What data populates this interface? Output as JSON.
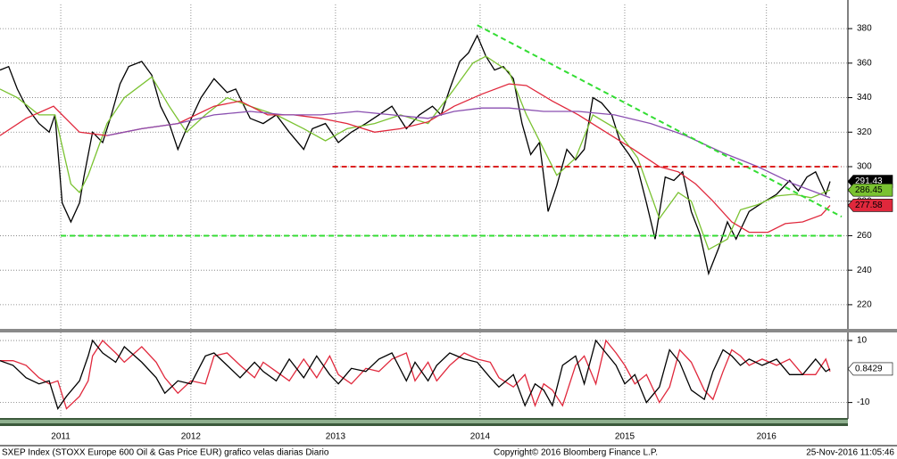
{
  "chart_data": [
    {
      "type": "line",
      "xlim": [
        2011.17,
        2016.99
      ],
      "ylim": [
        206,
        394
      ],
      "yticks": [
        220,
        240,
        260,
        280,
        300,
        320,
        340,
        360,
        380
      ],
      "grid": true,
      "series": [
        {
          "color": "#000000",
          "x": [
            2011.17,
            2011.23,
            2011.29,
            2011.35,
            2011.44,
            2011.51,
            2011.55,
            2011.6,
            2011.66,
            2011.72,
            2011.75,
            2011.81,
            2011.88,
            2011.94,
            2012.0,
            2012.06,
            2012.15,
            2012.22,
            2012.28,
            2012.34,
            2012.4,
            2012.46,
            2012.56,
            2012.65,
            2012.74,
            2012.8,
            2012.9,
            2012.99,
            2013.08,
            2013.17,
            2013.27,
            2013.33,
            2013.42,
            2013.51,
            2013.6,
            2013.7,
            2013.79,
            2013.88,
            2013.98,
            2014.07,
            2014.16,
            2014.22,
            2014.28,
            2014.35,
            2014.41,
            2014.47,
            2014.53,
            2014.59,
            2014.65,
            2014.72,
            2014.78,
            2014.84,
            2014.9,
            2014.96,
            2015.02,
            2015.09,
            2015.15,
            2015.21,
            2015.27,
            2015.33,
            2015.4,
            2015.46,
            2015.52,
            2015.58,
            2015.64,
            2015.7,
            2015.77,
            2015.83,
            2015.89,
            2015.95,
            2016.01,
            2016.07,
            2016.14,
            2016.2,
            2016.26,
            2016.35,
            2016.44,
            2016.54,
            2016.63,
            2016.69,
            2016.75,
            2016.81,
            2016.88,
            2016.91
          ],
          "values": [
            356,
            358,
            345,
            335,
            325,
            320,
            330,
            279,
            268,
            279,
            294,
            320,
            314,
            330,
            348,
            358,
            361,
            353,
            335,
            325,
            310,
            322,
            340,
            351,
            343,
            345,
            328,
            325,
            330,
            320,
            310,
            322,
            325,
            314,
            320,
            325,
            330,
            335,
            322,
            330,
            335,
            330,
            345,
            361,
            366,
            376,
            364,
            356,
            358,
            351,
            325,
            307,
            314,
            274,
            289,
            310,
            304,
            310,
            340,
            337,
            330,
            314,
            307,
            299,
            279,
            258,
            294,
            292,
            297,
            274,
            261,
            238,
            253,
            268,
            258,
            274,
            279,
            284,
            292,
            286,
            294,
            297,
            284,
            291.43
          ]
        },
        {
          "color": "#7ac231",
          "x": [
            2011.17,
            2011.29,
            2011.44,
            2011.55,
            2011.66,
            2011.72,
            2011.78,
            2011.91,
            2012.03,
            2012.22,
            2012.34,
            2012.46,
            2012.59,
            2012.74,
            2012.9,
            2013.08,
            2013.27,
            2013.42,
            2013.57,
            2013.76,
            2013.94,
            2014.13,
            2014.31,
            2014.44,
            2014.53,
            2014.69,
            2014.81,
            2014.93,
            2015.02,
            2015.15,
            2015.27,
            2015.43,
            2015.58,
            2015.73,
            2015.86,
            2015.95,
            2016.07,
            2016.2,
            2016.29,
            2016.41,
            2016.54,
            2016.66,
            2016.78,
            2016.91
          ],
          "values": [
            345,
            340,
            330,
            330,
            290,
            285,
            295,
            325,
            340,
            352,
            335,
            320,
            330,
            340,
            335,
            330,
            322,
            315,
            322,
            325,
            330,
            325,
            345,
            360,
            364,
            355,
            330,
            310,
            295,
            305,
            330,
            322,
            305,
            270,
            285,
            280,
            252,
            258,
            275,
            278,
            283,
            284,
            282,
            286.45
          ]
        },
        {
          "color": "#e0283c",
          "x": [
            2011.17,
            2011.35,
            2011.54,
            2011.72,
            2011.91,
            2012.15,
            2012.4,
            2012.65,
            2012.83,
            2013.02,
            2013.2,
            2013.39,
            2013.57,
            2013.76,
            2013.94,
            2014.13,
            2014.31,
            2014.5,
            2014.69,
            2014.81,
            2014.99,
            2015.17,
            2015.36,
            2015.55,
            2015.73,
            2015.86,
            2015.98,
            2016.1,
            2016.23,
            2016.35,
            2016.48,
            2016.6,
            2016.72,
            2016.85,
            2016.91
          ],
          "values": [
            318,
            328,
            335,
            320,
            318,
            322,
            325,
            335,
            338,
            330,
            330,
            328,
            325,
            320,
            322,
            326,
            335,
            342,
            348,
            347,
            338,
            330,
            320,
            310,
            300,
            297,
            290,
            280,
            268,
            262,
            262,
            267,
            268,
            272,
            277.58
          ]
        },
        {
          "color": "#8a4fb0",
          "x": [
            2011.91,
            2012.15,
            2012.4,
            2012.65,
            2012.9,
            2013.14,
            2013.39,
            2013.64,
            2013.88,
            2014.13,
            2014.31,
            2014.5,
            2014.69,
            2014.93,
            2015.17,
            2015.42,
            2015.67,
            2015.91,
            2016.17,
            2016.41,
            2016.66,
            2016.91
          ],
          "values": [
            318,
            322,
            325,
            330,
            332,
            330,
            330,
            332,
            330,
            328,
            332,
            334,
            334,
            332,
            332,
            330,
            325,
            318,
            308,
            300,
            290,
            282
          ]
        }
      ],
      "trend_lines": [
        {
          "color": "#33dd33",
          "x": [
            2014.47,
            2016.99
          ],
          "values": [
            382,
            271
          ]
        },
        {
          "color": "#dd2222",
          "x": [
            2013.47,
            2016.99
          ],
          "values": [
            300,
            300
          ]
        },
        {
          "color": "#33dd33",
          "x": [
            2011.59,
            2016.99
          ],
          "values": [
            260,
            260
          ]
        }
      ],
      "value_boxes": [
        {
          "series": 0,
          "color": "#000000",
          "text_color": "#ffffff"
        },
        {
          "series": 1,
          "color": "#7ac231",
          "text_color": "#000000"
        },
        {
          "series": 2,
          "color": "#e0283c",
          "text_color": "#000000"
        }
      ]
    },
    {
      "type": "line",
      "xlim": [
        2011.17,
        2016.99
      ],
      "ylim": [
        -15,
        12.6
      ],
      "yticks": [
        -10,
        10
      ],
      "grid": true,
      "xticks": [
        {
          "value": 2011.59,
          "label": "2011"
        },
        {
          "value": 2012.49,
          "label": "2012"
        },
        {
          "value": 2013.49,
          "label": "2013"
        },
        {
          "value": 2014.49,
          "label": "2014"
        },
        {
          "value": 2015.49,
          "label": "2015"
        },
        {
          "value": 2016.47,
          "label": "2016"
        }
      ],
      "series": [
        {
          "color": "#e0283c",
          "x": [
            2011.17,
            2011.26,
            2011.35,
            2011.44,
            2011.51,
            2011.57,
            2011.63,
            2011.72,
            2011.78,
            2011.81,
            2011.88,
            2011.97,
            2012.03,
            2012.15,
            2012.25,
            2012.31,
            2012.4,
            2012.49,
            2012.59,
            2012.65,
            2012.74,
            2012.83,
            2012.93,
            2012.99,
            2013.08,
            2013.17,
            2013.27,
            2013.36,
            2013.45,
            2013.51,
            2013.6,
            2013.7,
            2013.79,
            2013.88,
            2013.98,
            2014.04,
            2014.13,
            2014.19,
            2014.28,
            2014.38,
            2014.47,
            2014.56,
            2014.62,
            2014.72,
            2014.8,
            2014.87,
            2014.93,
            2014.99,
            2015.06,
            2015.15,
            2015.21,
            2015.29,
            2015.36,
            2015.43,
            2015.49,
            2015.56,
            2015.64,
            2015.73,
            2015.8,
            2015.87,
            2015.95,
            2016.04,
            2016.1,
            2016.17,
            2016.23,
            2016.29,
            2016.35,
            2016.44,
            2016.54,
            2016.63,
            2016.72,
            2016.81,
            2016.88,
            2016.91
          ],
          "values": [
            3.5,
            3.5,
            2,
            -2,
            -4,
            -3,
            -12,
            -8,
            -3,
            5,
            10,
            6,
            3,
            8,
            3,
            -2,
            -7,
            -3,
            -4,
            5,
            6,
            2,
            -2,
            3,
            0,
            -3,
            4,
            -2,
            5,
            -1,
            -4,
            1,
            0,
            4,
            6,
            -3,
            3,
            -3,
            2,
            6,
            4,
            3,
            -2,
            -5,
            -1,
            -11,
            -4,
            -6,
            -11,
            2,
            5,
            -4,
            10,
            6,
            2,
            -4,
            -1,
            -10,
            -5,
            7,
            3,
            -6,
            -9,
            0,
            7,
            5,
            2,
            4,
            2,
            4,
            -1,
            -1,
            4,
            0
          ]
        },
        {
          "color": "#000000",
          "x": [
            2011.17,
            2011.26,
            2011.35,
            2011.44,
            2011.51,
            2011.57,
            2011.63,
            2011.72,
            2011.78,
            2011.81,
            2011.88,
            2011.97,
            2012.03,
            2012.15,
            2012.25,
            2012.31,
            2012.4,
            2012.49,
            2012.59,
            2012.65,
            2012.74,
            2012.83,
            2012.93,
            2012.99,
            2013.08,
            2013.17,
            2013.27,
            2013.36,
            2013.45,
            2013.51,
            2013.6,
            2013.7,
            2013.79,
            2013.88,
            2013.98,
            2014.04,
            2014.13,
            2014.19,
            2014.28,
            2014.38,
            2014.47,
            2014.56,
            2014.62,
            2014.72,
            2014.8,
            2014.87,
            2014.93,
            2014.99,
            2015.06,
            2015.15,
            2015.21,
            2015.29,
            2015.36,
            2015.43,
            2015.49,
            2015.56,
            2015.64,
            2015.73,
            2015.8,
            2015.87,
            2015.95,
            2016.04,
            2016.1,
            2016.17,
            2016.23,
            2016.29,
            2016.35,
            2016.44,
            2016.54,
            2016.63,
            2016.72,
            2016.81,
            2016.88,
            2016.91
          ],
          "values": [
            3.5,
            2,
            -2,
            -4,
            -3,
            -12,
            -8,
            -3,
            5,
            10,
            6,
            3,
            8,
            3,
            -2,
            -7,
            -3,
            -4,
            5,
            6,
            2,
            -2,
            3,
            0,
            -3,
            4,
            -2,
            5,
            -1,
            -4,
            1,
            0,
            4,
            6,
            -3,
            3,
            -3,
            2,
            6,
            4,
            3,
            -2,
            -5,
            -1,
            -11,
            -4,
            -6,
            -11,
            2,
            5,
            -4,
            10,
            6,
            2,
            -4,
            -1,
            -10,
            -5,
            7,
            3,
            -6,
            -9,
            0,
            7,
            5,
            2,
            4,
            2,
            4,
            -1,
            -1,
            4,
            0,
            0.8429
          ]
        }
      ],
      "value_boxes": [
        {
          "series": 1,
          "color": "#ffffff",
          "text_color": "#000000"
        }
      ]
    }
  ],
  "footer": {
    "left": "SXEP Index (STOXX Europe 600 Oil & Gas Price EUR) grafico velas diarias  Diario",
    "center": "Copyright© 2016 Bloomberg Finance L.P.",
    "right": "25-Nov-2016 11:05:46"
  }
}
